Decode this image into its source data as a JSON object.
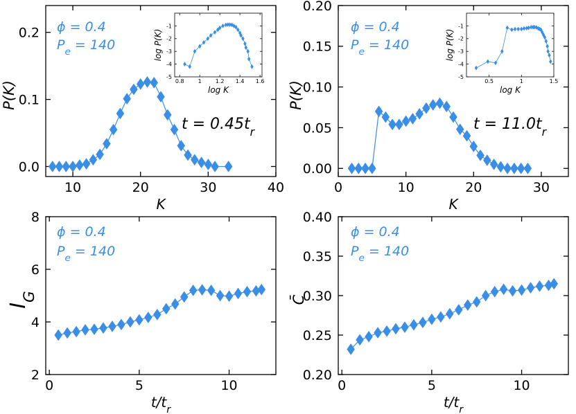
{
  "colors": {
    "series": "#3a8ee6",
    "axis": "#000000"
  },
  "chart_data": [
    {
      "id": "p1",
      "type": "line",
      "marker": "diamond",
      "xlabel": "K",
      "ylabel": "P(K)",
      "xlim": [
        6,
        40
      ],
      "ylim": [
        -0.015,
        0.24
      ],
      "xticks": [
        10,
        20,
        30,
        40
      ],
      "yticks": [
        0.0,
        0.1,
        0.2
      ],
      "yticklabels": [
        "0.0",
        "0.1",
        "0.2"
      ],
      "legend_lines": [
        "ϕ = 0.4",
        "P_e = 140"
      ],
      "annotation": "t = 0.45t_r",
      "x": [
        7,
        8,
        9,
        10,
        11,
        12,
        13,
        14,
        15,
        16,
        17,
        18,
        19,
        20,
        21,
        22,
        23,
        24,
        25,
        26,
        27,
        28,
        29,
        30,
        31,
        33
      ],
      "y": [
        0.0,
        0.0,
        0.0,
        0.0,
        0.002,
        0.004,
        0.01,
        0.018,
        0.034,
        0.055,
        0.079,
        0.101,
        0.115,
        0.123,
        0.126,
        0.125,
        0.104,
        0.077,
        0.055,
        0.031,
        0.017,
        0.01,
        0.006,
        0.003,
        0.0,
        0.0
      ],
      "inset": {
        "xlabel": "log K",
        "ylabel": "log P(K)",
        "xlim": [
          0.75,
          1.62
        ],
        "ylim": [
          -5,
          0
        ],
        "xticks": [
          0.8,
          1.0,
          1.2,
          1.4,
          1.6
        ],
        "yticks": [
          -5,
          -4,
          -3,
          -2,
          -1
        ],
        "x": [
          0.85,
          0.9,
          0.95,
          1.0,
          1.04,
          1.08,
          1.11,
          1.15,
          1.18,
          1.2,
          1.23,
          1.26,
          1.28,
          1.3,
          1.32,
          1.34,
          1.36,
          1.38,
          1.4,
          1.41,
          1.43,
          1.45,
          1.46,
          1.48,
          1.49,
          1.52
        ],
        "y": [
          -4.0,
          -4.2,
          -3.0,
          -2.6,
          -2.3,
          -2.0,
          -1.75,
          -1.5,
          -1.3,
          -1.15,
          -1.0,
          -0.92,
          -0.9,
          -0.9,
          -0.92,
          -1.0,
          -1.1,
          -1.3,
          -1.55,
          -1.75,
          -2.0,
          -2.4,
          -2.7,
          -3.0,
          -3.6,
          -4.2
        ]
      }
    },
    {
      "id": "p2",
      "type": "line",
      "marker": "diamond",
      "xlabel": "K",
      "ylabel": "P(K)",
      "xlim": [
        0,
        34
      ],
      "ylim": [
        -0.01,
        0.2
      ],
      "xticks": [
        0,
        10,
        20,
        30
      ],
      "yticks": [
        0.0,
        0.05,
        0.1,
        0.15,
        0.2
      ],
      "yticklabels": [
        "0.00",
        "0.05",
        "0.10",
        "0.15",
        "0.20"
      ],
      "legend_lines": [
        "ϕ = 0.4",
        "P_e = 140"
      ],
      "annotation": "t = 11.0t_r",
      "x": [
        2,
        3,
        4,
        5,
        6,
        7,
        8,
        9,
        10,
        11,
        12,
        13,
        14,
        15,
        16,
        17,
        18,
        19,
        20,
        21,
        22,
        23,
        24,
        25,
        26,
        27,
        28
      ],
      "y": [
        0.0,
        0.0,
        0.0,
        0.0,
        0.07,
        0.063,
        0.054,
        0.054,
        0.058,
        0.061,
        0.067,
        0.074,
        0.078,
        0.08,
        0.076,
        0.063,
        0.048,
        0.04,
        0.027,
        0.016,
        0.01,
        0.005,
        0.002,
        0.0,
        0.0,
        0.0,
        0.0
      ],
      "inset": {
        "xlabel": "log K",
        "ylabel": "log P(K)",
        "xlim": [
          0.15,
          1.5
        ],
        "ylim": [
          -5,
          0
        ],
        "xticks": [
          0.5,
          1.0,
          1.5
        ],
        "yticks": [
          -5,
          -4,
          -3,
          -2,
          -1
        ],
        "x": [
          0.3,
          0.48,
          0.6,
          0.7,
          0.78,
          0.85,
          0.9,
          0.95,
          1.0,
          1.04,
          1.08,
          1.11,
          1.15,
          1.18,
          1.2,
          1.23,
          1.26,
          1.28,
          1.3,
          1.32,
          1.34,
          1.36,
          1.38,
          1.4,
          1.41,
          1.43,
          1.45
        ],
        "y": [
          -4.3,
          -3.8,
          -3.9,
          -3.0,
          -1.15,
          -1.3,
          -1.25,
          -1.25,
          -1.25,
          -1.2,
          -1.18,
          -1.15,
          -1.1,
          -1.1,
          -1.1,
          -1.12,
          -1.2,
          -1.25,
          -1.3,
          -1.5,
          -1.7,
          -1.9,
          -2.2,
          -2.6,
          -3.0,
          -3.3,
          -3.8
        ]
      }
    },
    {
      "id": "p3",
      "type": "line",
      "marker": "diamond",
      "xlabel": "t/t_r",
      "ylabel": "I_G",
      "xlim": [
        -0.2,
        12.6
      ],
      "ylim": [
        2,
        8
      ],
      "xticks": [
        0,
        5,
        10
      ],
      "yticks": [
        2,
        4,
        6,
        8
      ],
      "yticklabels": [
        "2",
        "4",
        "6",
        "8"
      ],
      "legend_lines": [
        "ϕ = 0.4",
        "P_e = 140"
      ],
      "x": [
        0.5,
        1.0,
        1.5,
        2.0,
        2.5,
        3.0,
        3.5,
        4.0,
        4.5,
        5.0,
        5.5,
        6.0,
        6.5,
        7.0,
        7.5,
        8.0,
        8.5,
        9.0,
        9.5,
        10.0,
        10.5,
        11.0,
        11.5,
        11.8
      ],
      "y": [
        3.5,
        3.58,
        3.63,
        3.7,
        3.72,
        3.77,
        3.83,
        3.9,
        4.0,
        4.08,
        4.17,
        4.28,
        4.5,
        4.68,
        4.95,
        5.2,
        5.22,
        5.2,
        5.0,
        4.98,
        5.08,
        5.15,
        5.18,
        5.23
      ]
    },
    {
      "id": "p4",
      "type": "line",
      "marker": "diamond",
      "xlabel": "t/t_r",
      "ylabel": "C̄",
      "xlim": [
        -0.2,
        12.6
      ],
      "ylim": [
        0.2,
        0.4
      ],
      "xticks": [
        0,
        5,
        10
      ],
      "yticks": [
        0.2,
        0.25,
        0.3,
        0.35,
        0.4
      ],
      "yticklabels": [
        "0.20",
        "0.25",
        "0.30",
        "0.35",
        "0.40"
      ],
      "legend_lines": [
        "ϕ = 0.4",
        "P_e = 140"
      ],
      "x": [
        0.5,
        1.0,
        1.5,
        2.0,
        2.5,
        3.0,
        3.5,
        4.0,
        4.5,
        5.0,
        5.5,
        6.0,
        6.5,
        7.0,
        7.5,
        8.0,
        8.5,
        9.0,
        9.5,
        10.0,
        10.5,
        11.0,
        11.5,
        11.8
      ],
      "y": [
        0.232,
        0.244,
        0.248,
        0.253,
        0.255,
        0.258,
        0.26,
        0.263,
        0.266,
        0.27,
        0.273,
        0.277,
        0.282,
        0.288,
        0.292,
        0.3,
        0.305,
        0.308,
        0.306,
        0.307,
        0.31,
        0.312,
        0.313,
        0.315
      ]
    }
  ]
}
